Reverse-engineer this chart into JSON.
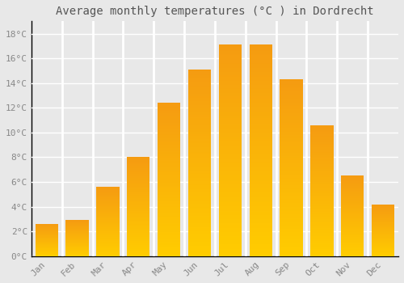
{
  "title": "Average monthly temperatures (°C ) in Dordrecht",
  "months": [
    "Jan",
    "Feb",
    "Mar",
    "Apr",
    "May",
    "Jun",
    "Jul",
    "Aug",
    "Sep",
    "Oct",
    "Nov",
    "Dec"
  ],
  "values": [
    2.6,
    2.9,
    5.6,
    8.0,
    12.4,
    15.1,
    17.1,
    17.1,
    14.3,
    10.6,
    6.5,
    4.2
  ],
  "bar_color_top": "#F5A623",
  "bar_color_bottom": "#FFD740",
  "background_color": "#e8e8e8",
  "plot_bg_color": "#e8e8e8",
  "grid_color": "#ffffff",
  "ylim": [
    0,
    19
  ],
  "yticks": [
    0,
    2,
    4,
    6,
    8,
    10,
    12,
    14,
    16,
    18
  ],
  "ytick_labels": [
    "0°C",
    "2°C",
    "4°C",
    "6°C",
    "8°C",
    "10°C",
    "12°C",
    "14°C",
    "16°C",
    "18°C"
  ],
  "title_fontsize": 10,
  "tick_fontsize": 8,
  "title_color": "#555555",
  "tick_color": "#888888",
  "spine_color": "#000000",
  "bar_width": 0.75,
  "bar_gap_color": "#ffffff"
}
